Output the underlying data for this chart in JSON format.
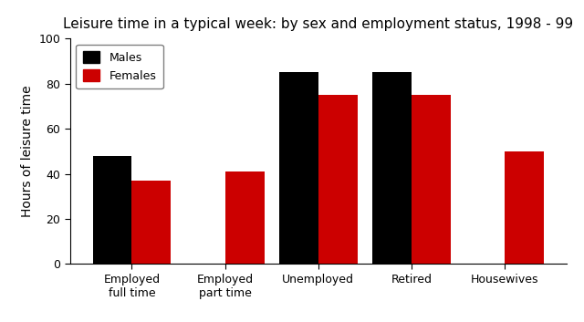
{
  "title": "Leisure time in a typical week: by sex and employment status, 1998 - 99",
  "ylabel": "Hours of leisure time",
  "categories": [
    "Employed\nfull time",
    "Employed\npart time",
    "Unemployed",
    "Retired",
    "Housewives"
  ],
  "males": [
    48,
    0,
    85,
    85,
    0
  ],
  "females": [
    37,
    41,
    75,
    75,
    50
  ],
  "male_color": "#000000",
  "female_color": "#cc0000",
  "ylim": [
    0,
    100
  ],
  "yticks": [
    0,
    20,
    40,
    60,
    80,
    100
  ],
  "legend_labels": [
    "Males",
    "Females"
  ],
  "bar_width": 0.42,
  "title_fontsize": 11,
  "label_fontsize": 10,
  "tick_fontsize": 9,
  "background_color": "#ffffff"
}
